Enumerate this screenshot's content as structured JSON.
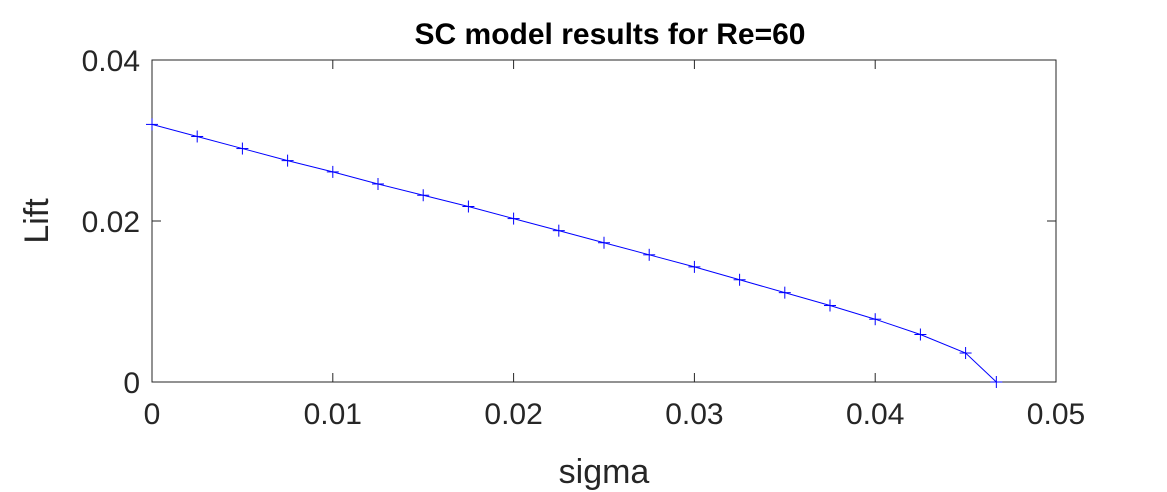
{
  "chart_data": {
    "type": "line",
    "title": "SC model results for Re=60",
    "xlabel": "sigma",
    "ylabel": "Lift",
    "xlim": [
      0,
      0.05
    ],
    "ylim": [
      0,
      0.04
    ],
    "x_ticks": [
      "0",
      "0.01",
      "0.02",
      "0.03",
      "0.04",
      "0.05"
    ],
    "y_ticks": [
      "0",
      "0.02",
      "0.04"
    ],
    "grid": false,
    "marker": "+",
    "series": [
      {
        "color": "#0000ff",
        "x": [
          0,
          0.0025,
          0.005,
          0.0075,
          0.01,
          0.0125,
          0.015,
          0.0175,
          0.02,
          0.0225,
          0.025,
          0.0275,
          0.03,
          0.0325,
          0.035,
          0.0375,
          0.04,
          0.0425,
          0.045,
          0.0467
        ],
        "y": [
          0.032,
          0.0305,
          0.029,
          0.0275,
          0.0261,
          0.0246,
          0.0232,
          0.0218,
          0.0203,
          0.0188,
          0.0173,
          0.0158,
          0.0143,
          0.0127,
          0.0111,
          0.0095,
          0.0078,
          0.0059,
          0.0036,
          0.0
        ]
      }
    ]
  }
}
